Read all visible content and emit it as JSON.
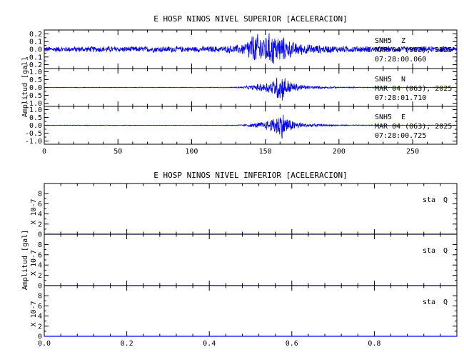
{
  "chart_data": [
    {
      "type": "line",
      "title": "E HOSP NINOS NIVEL SUPERIOR [ACELERACION]",
      "ylabel": "Amplitud [gal]",
      "xlim": [
        0,
        280
      ],
      "x_ticks": [
        "0",
        "50",
        "100",
        "150",
        "200",
        "250"
      ],
      "line_color": "#0000ff",
      "grid": false,
      "series": [
        {
          "name": "SNH5 Z",
          "station": "SNH5",
          "component": "Z",
          "date": "MAR 04 (063), 2025",
          "time": "07:28:00.060",
          "ylim": [
            -0.25,
            0.25
          ],
          "y_ticks": [
            "0.2",
            "0.1",
            "0.0",
            "-0.1",
            "-0.2"
          ],
          "envelope": {
            "x": [
              0,
              20,
              40,
              60,
              80,
              100,
              120,
              130,
              136,
              140,
              145,
              150,
              155,
              160,
              165,
              170,
              175,
              180,
              190,
              200,
              220,
              240,
              260,
              280
            ],
            "y": [
              0.04,
              0.04,
              0.045,
              0.04,
              0.045,
              0.04,
              0.045,
              0.06,
              0.09,
              0.2,
              0.22,
              0.22,
              0.24,
              0.2,
              0.14,
              0.1,
              0.08,
              0.07,
              0.055,
              0.05,
              0.045,
              0.04,
              0.04,
              0.04
            ]
          }
        },
        {
          "name": "SNH5 N",
          "station": "SNH5",
          "component": "N",
          "date": "MAR 04 (063), 2025",
          "time": "07:28:01.710",
          "ylim": [
            -1.2,
            1.2
          ],
          "y_ticks": [
            "1.0",
            "0.5",
            "0.0",
            "-0.5",
            "-1.0"
          ],
          "envelope": {
            "x": [
              0,
              100,
              125,
              135,
              140,
              145,
              150,
              155,
              158,
              160,
              163,
              166,
              170,
              175,
              180,
              190,
              200,
              220,
              280
            ],
            "y": [
              0.02,
              0.02,
              0.025,
              0.06,
              0.15,
              0.25,
              0.35,
              0.55,
              0.85,
              1.05,
              0.8,
              0.5,
              0.3,
              0.2,
              0.12,
              0.07,
              0.04,
              0.03,
              0.02
            ]
          }
        },
        {
          "name": "SNH5 E",
          "station": "SNH5",
          "component": "E",
          "date": "MAR 04 (063), 2025",
          "time": "07:28:00.725",
          "ylim": [
            -1.2,
            1.2
          ],
          "y_ticks": [
            "1.0",
            "0.5",
            "0.0",
            "-0.5",
            "-1.0"
          ],
          "envelope": {
            "x": [
              0,
              100,
              125,
              135,
              140,
              145,
              150,
              155,
              158,
              160,
              163,
              166,
              170,
              175,
              180,
              190,
              200,
              220,
              280
            ],
            "y": [
              0.02,
              0.02,
              0.025,
              0.05,
              0.12,
              0.2,
              0.3,
              0.5,
              0.8,
              1.0,
              0.8,
              0.45,
              0.3,
              0.2,
              0.12,
              0.07,
              0.04,
              0.03,
              0.02
            ]
          }
        }
      ]
    },
    {
      "type": "line",
      "title": "E HOSP NINOS NIVEL INFERIOR [ACELERACION]",
      "ylabel": "Amplitud [gal]",
      "y_multiplier": "X 10-7",
      "xlim": [
        0,
        1
      ],
      "x_ticks": [
        "0.0",
        "0.2",
        "0.4",
        "0.6",
        "0.8"
      ],
      "line_color": "#0000ff",
      "grid": false,
      "series": [
        {
          "label": "sta",
          "component": "Q",
          "ylim": [
            0,
            10
          ],
          "y_ticks": [
            "8",
            "6",
            "4",
            "2",
            "0"
          ],
          "x": [
            0,
            1
          ],
          "y": [
            0,
            0
          ]
        },
        {
          "label": "sta",
          "component": "Q",
          "ylim": [
            0,
            10
          ],
          "y_ticks": [
            "8",
            "6",
            "4",
            "2",
            "0"
          ],
          "x": [
            0,
            1
          ],
          "y": [
            0,
            0
          ]
        },
        {
          "label": "sta",
          "component": "Q",
          "ylim": [
            0,
            10
          ],
          "y_ticks": [
            "8",
            "6",
            "4",
            "2",
            "0"
          ],
          "x": [
            0,
            1
          ],
          "y": [
            0,
            0
          ]
        }
      ]
    }
  ]
}
